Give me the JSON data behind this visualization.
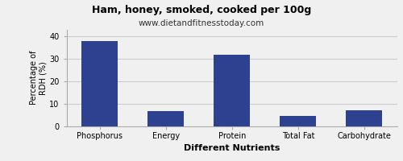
{
  "title": "Ham, honey, smoked, cooked per 100g",
  "subtitle": "www.dietandfitnesstoday.com",
  "xlabel": "Different Nutrients",
  "ylabel": "Percentage of\nRDH (%)",
  "categories": [
    "Phosphorus",
    "Energy",
    "Protein",
    "Total Fat",
    "Carbohydrate"
  ],
  "values": [
    38,
    6.5,
    32,
    4.5,
    7
  ],
  "bar_color": "#2e4090",
  "ylim": [
    0,
    43
  ],
  "yticks": [
    0,
    10,
    20,
    30,
    40
  ],
  "background_color": "#f0f0f0",
  "title_fontsize": 9,
  "subtitle_fontsize": 7.5,
  "xlabel_fontsize": 8,
  "ylabel_fontsize": 7,
  "tick_fontsize": 7,
  "grid_color": "#cccccc"
}
